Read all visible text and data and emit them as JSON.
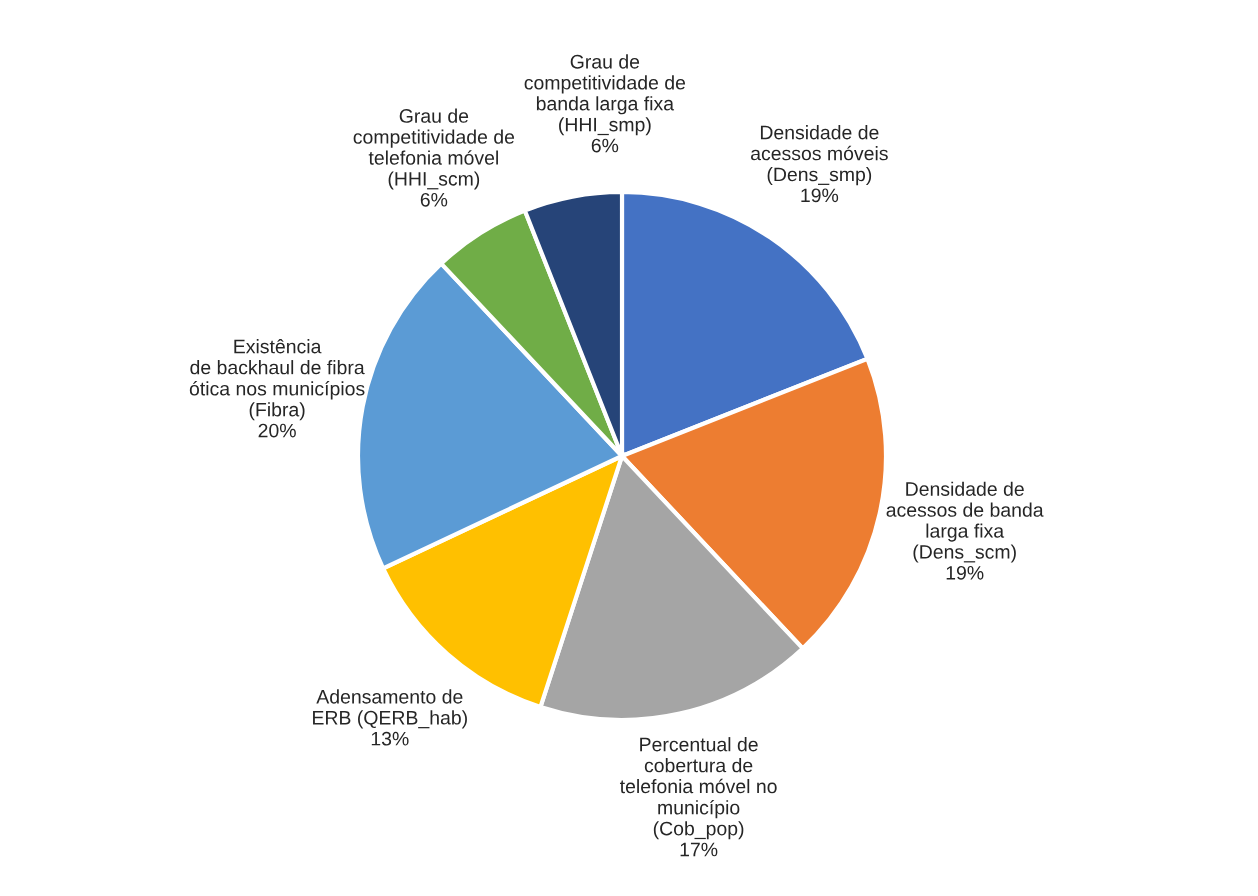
{
  "chart_data": {
    "type": "pie",
    "categories": [
      "Densidade de\nacessos móveis\n(Dens_smp)",
      "Densidade de\nacessos de banda\nlarga fixa\n(Dens_scm)",
      "Percentual de\ncobertura de\ntelefonia móvel no\nmunicípio\n(Cob_pop)",
      "Adensamento de\nERB (QERB_hab)",
      "Existência\nde backhaul de fibra\nótica nos municípios\n(Fibra)",
      "Grau de\ncompetitividade de\ntelefonia móvel\n(HHI_scm)",
      "Grau de\ncompetitividade de\nbanda larga fixa\n(HHI_smp)"
    ],
    "values": [
      19,
      19,
      17,
      13,
      20,
      6,
      6
    ],
    "value_labels": [
      "19%",
      "19%",
      "17%",
      "13%",
      "20%",
      "6%",
      "6%"
    ],
    "colors": [
      "#4472c4",
      "#ed7d31",
      "#a5a5a5",
      "#ffc000",
      "#5b9bd5",
      "#70ad47",
      "#264478"
    ]
  }
}
